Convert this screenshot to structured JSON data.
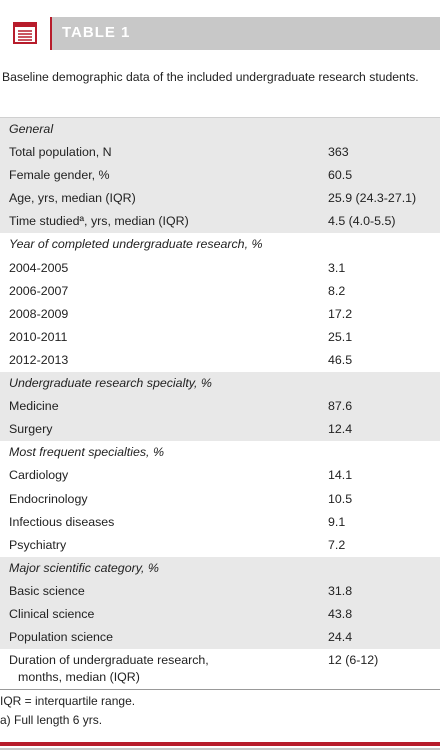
{
  "header": {
    "title": "TABLE 1",
    "icon": "document-list-icon"
  },
  "caption": "Baseline demographic data of the included undergraduate research students.",
  "rows": [
    {
      "label": "General",
      "value": "",
      "type": "section"
    },
    {
      "label": "Total population, N",
      "value": "363"
    },
    {
      "label": "Female gender, %",
      "value": "60.5"
    },
    {
      "label": "Age, yrs, median (IQR)",
      "value": "25.9 (24.3-27.1)"
    },
    {
      "label": "Time studiedª, yrs, median (IQR)",
      "value": "4.5 (4.0-5.5)"
    },
    {
      "label": "Year of completed undergraduate research, %",
      "value": "",
      "type": "section"
    },
    {
      "label": "2004-2005",
      "value": "3.1"
    },
    {
      "label": "2006-2007",
      "value": "8.2"
    },
    {
      "label": "2008-2009",
      "value": "17.2"
    },
    {
      "label": "2010-2011",
      "value": "25.1"
    },
    {
      "label": "2012-2013",
      "value": "46.5"
    },
    {
      "label": "Undergraduate research specialty, %",
      "value": "",
      "type": "section"
    },
    {
      "label": "Medicine",
      "value": "87.6"
    },
    {
      "label": "Surgery",
      "value": "12.4"
    },
    {
      "label": "Most frequent specialties, %",
      "value": "",
      "type": "section"
    },
    {
      "label": "Cardiology",
      "value": "14.1"
    },
    {
      "label": "Endocrinology",
      "value": "10.5"
    },
    {
      "label": "Infectious diseases",
      "value": "9.1"
    },
    {
      "label": "Psychiatry",
      "value": "7.2"
    },
    {
      "label": "Major scientific category, %",
      "value": "",
      "type": "section"
    },
    {
      "label": "Basic science",
      "value": "31.8"
    },
    {
      "label": "Clinical science",
      "value": "43.8"
    },
    {
      "label": "Population science",
      "value": "24.4"
    }
  ],
  "last_row": {
    "label_line1": "Duration of undergraduate research,",
    "label_line2": "months, median (IQR)",
    "value": "12 (6-12)"
  },
  "footnotes": [
    "IQR = interquartile range.",
    "a) Full length 6 yrs."
  ],
  "colors": {
    "accent": "#b71c2b",
    "header_bg": "#c8c8c8",
    "shade": "#e8e8e8"
  }
}
